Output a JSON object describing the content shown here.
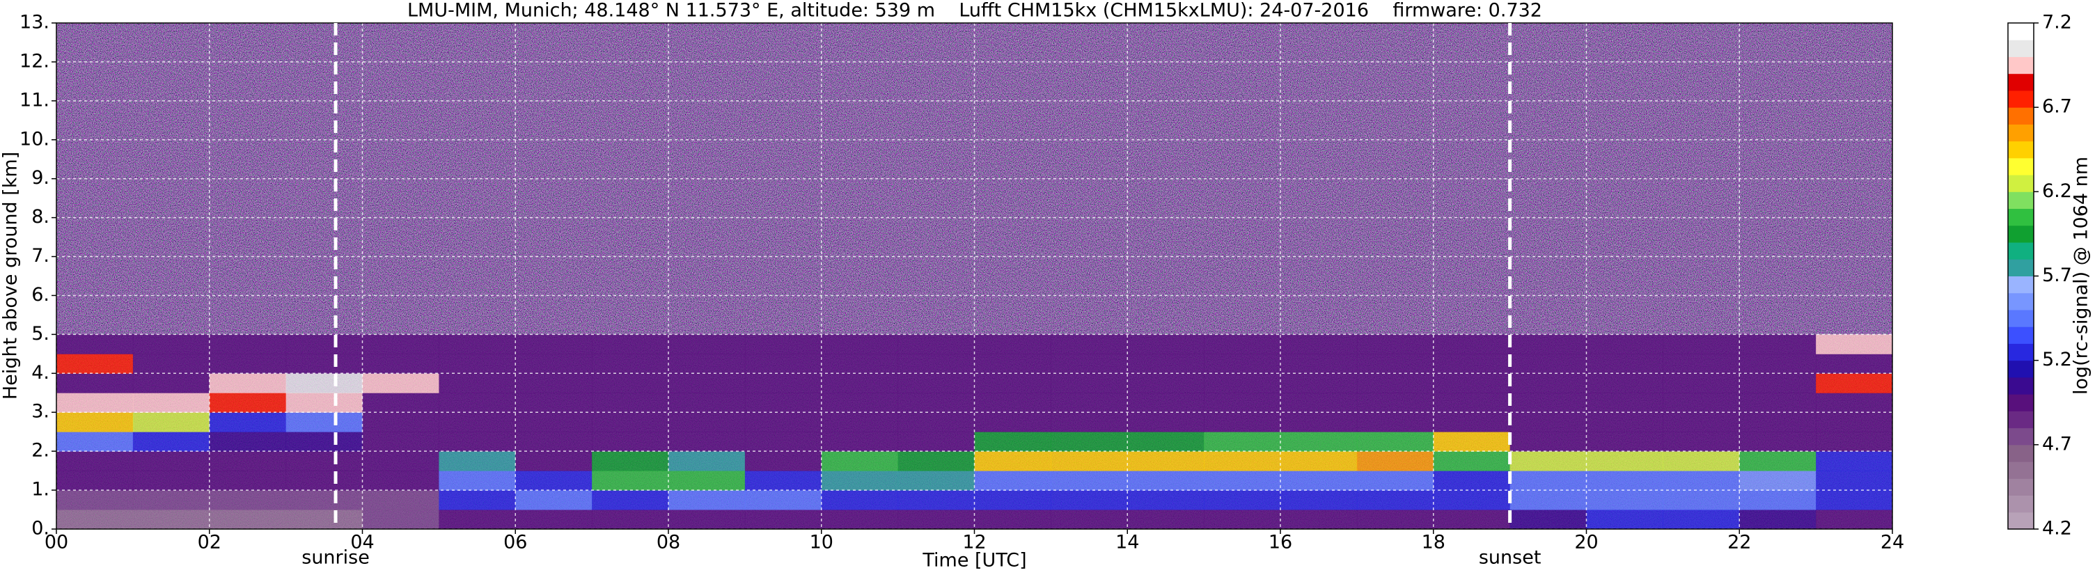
{
  "chart_data": {
    "type": "heatmap",
    "title": "LMU-MIM, Munich; 48.148° N 11.573° E, altitude: 539 m    Lufft CHM15kx (CHM15kxLMU): 24-07-2016    firmware: 0.732",
    "xlabel": "Time [UTC]",
    "ylabel": "Height above ground [km]",
    "xlim": [
      0,
      24
    ],
    "ylim": [
      0,
      13
    ],
    "xticks": [
      {
        "value": 0,
        "label": "00"
      },
      {
        "value": 2,
        "label": "02"
      },
      {
        "value": 4,
        "label": "04"
      },
      {
        "value": 6,
        "label": "06"
      },
      {
        "value": 8,
        "label": "08"
      },
      10,
      12,
      14,
      16,
      18,
      20,
      22,
      24
    ],
    "yticks": [
      {
        "value": 0,
        "label": "0."
      },
      {
        "value": 1,
        "label": "1."
      },
      {
        "value": 2,
        "label": "2."
      },
      {
        "value": 3,
        "label": "3."
      },
      {
        "value": 4,
        "label": "4."
      },
      {
        "value": 5,
        "label": "5."
      },
      {
        "value": 6,
        "label": "6."
      },
      {
        "value": 7,
        "label": "7."
      },
      {
        "value": 8,
        "label": "8."
      },
      {
        "value": 9,
        "label": "9."
      },
      {
        "value": 10,
        "label": "10."
      },
      {
        "value": 11,
        "label": "11."
      },
      {
        "value": 12,
        "label": "12."
      },
      {
        "value": 13,
        "label": "13."
      }
    ],
    "grid": true,
    "xbins": [
      0,
      1,
      2,
      3,
      4,
      5,
      6,
      7,
      8,
      9,
      10,
      11,
      12,
      13,
      14,
      15,
      16,
      17,
      18,
      19,
      20,
      21,
      22,
      23,
      24
    ],
    "ybins": [
      0,
      0.5,
      1,
      1.5,
      2,
      2.5,
      3,
      3.5,
      4,
      4.5,
      5
    ],
    "z": [
      [
        4.6,
        4.6,
        4.6,
        4.6,
        4.7,
        4.9,
        5.0,
        5.0,
        5.0,
        5.0,
        4.95,
        4.95,
        4.95,
        4.95,
        4.95,
        4.95,
        4.95,
        4.95,
        5.0,
        5.1,
        5.2,
        5.2,
        5.1,
        5.0
      ],
      [
        4.8,
        4.8,
        4.8,
        4.8,
        4.8,
        5.3,
        5.4,
        5.3,
        5.4,
        5.4,
        5.3,
        5.3,
        5.2,
        5.2,
        5.2,
        5.2,
        5.2,
        5.2,
        5.2,
        5.4,
        5.4,
        5.4,
        5.4,
        5.3
      ],
      [
        4.9,
        4.9,
        4.9,
        4.9,
        4.9,
        5.5,
        5.3,
        6.0,
        6.1,
        5.3,
        5.8,
        5.8,
        5.4,
        5.4,
        5.4,
        5.4,
        5.4,
        5.4,
        5.3,
        5.5,
        5.5,
        5.5,
        5.6,
        5.3
      ],
      [
        5.0,
        5.0,
        5.0,
        5.0,
        4.9,
        5.8,
        5.0,
        5.9,
        5.8,
        5.0,
        6.0,
        5.9,
        6.4,
        6.4,
        6.4,
        6.4,
        6.4,
        6.5,
        6.0,
        6.3,
        6.2,
        6.2,
        6.0,
        5.3
      ],
      [
        5.4,
        5.2,
        5.1,
        5.1,
        4.9,
        4.9,
        4.9,
        5.0,
        5.0,
        4.9,
        5.0,
        5.0,
        5.9,
        5.9,
        5.9,
        6.0,
        6.0,
        6.0,
        6.4,
        4.9,
        4.9,
        4.9,
        4.9,
        4.9
      ],
      [
        6.4,
        6.2,
        5.2,
        5.5,
        4.9,
        4.9,
        4.9,
        4.9,
        4.9,
        4.9,
        4.9,
        4.9,
        4.9,
        4.9,
        4.9,
        4.9,
        4.9,
        4.9,
        4.9,
        4.9,
        4.9,
        4.9,
        4.9,
        4.9
      ],
      [
        7.0,
        7.0,
        6.8,
        6.9,
        4.9,
        4.9,
        4.9,
        4.9,
        4.9,
        4.9,
        4.9,
        4.9,
        4.9,
        4.9,
        4.9,
        4.9,
        4.9,
        4.9,
        4.9,
        4.9,
        4.9,
        4.9,
        4.9,
        4.9
      ],
      [
        4.9,
        4.9,
        7.0,
        7.1,
        7.0,
        4.9,
        4.9,
        4.9,
        4.9,
        4.9,
        4.9,
        4.9,
        4.9,
        4.9,
        4.9,
        4.9,
        4.9,
        4.9,
        4.9,
        4.9,
        4.9,
        4.9,
        4.9,
        6.8
      ],
      [
        6.8,
        4.9,
        4.9,
        4.9,
        4.9,
        4.9,
        4.9,
        4.9,
        4.9,
        4.9,
        4.9,
        4.9,
        4.9,
        4.9,
        4.9,
        4.9,
        4.9,
        4.9,
        4.9,
        4.9,
        4.9,
        4.9,
        4.9,
        4.9
      ],
      [
        4.9,
        4.9,
        4.9,
        4.9,
        4.9,
        4.9,
        4.9,
        4.9,
        4.9,
        4.9,
        4.9,
        4.9,
        4.9,
        4.9,
        4.9,
        4.9,
        4.9,
        4.9,
        4.9,
        4.9,
        4.9,
        4.9,
        4.9,
        6.9
      ]
    ],
    "clim": [
      4.2,
      7.2
    ],
    "cticks": [
      4.2,
      4.7,
      5.2,
      5.7,
      6.2,
      6.7,
      7.2
    ],
    "clabel": "log(rc-signal) @ 1064 nm",
    "colormap": [
      "#b8a2b8",
      "#ac92ac",
      "#a082a0",
      "#947294",
      "#886288",
      "#7c4a8c",
      "#6a2a84",
      "#58107c",
      "#3a0a90",
      "#2010b0",
      "#2828e0",
      "#3c50ff",
      "#5a78ff",
      "#7896ff",
      "#9ab4ff",
      "#30a0a0",
      "#10b080",
      "#10a030",
      "#30c040",
      "#80e060",
      "#d0f040",
      "#ffff30",
      "#ffd000",
      "#ffa000",
      "#ff7000",
      "#ff2000",
      "#e00000",
      "#ffc8c8",
      "#e8e8e8",
      "#ffffff"
    ],
    "annotations": [
      {
        "text": "sunrise",
        "x": 3.65
      },
      {
        "text": "sunset",
        "x": 19.0
      }
    ]
  }
}
